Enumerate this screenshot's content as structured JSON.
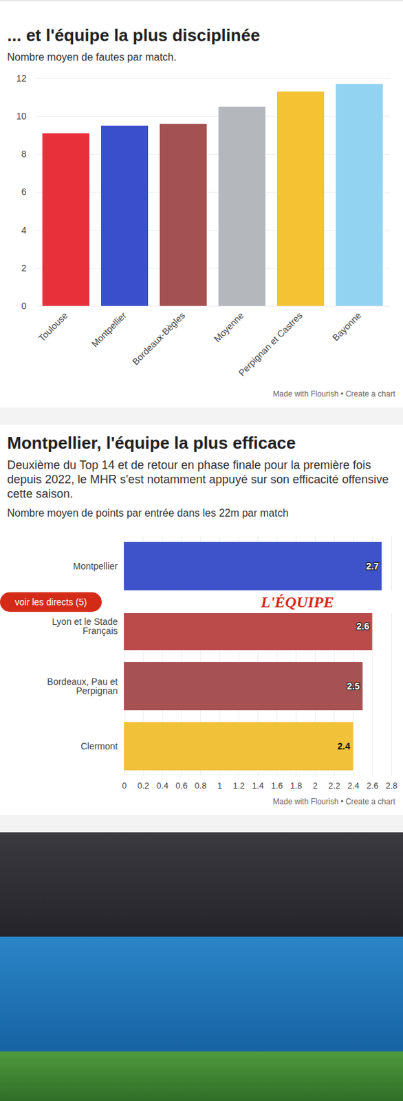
{
  "banner": {
    "button": "voir les directs (5)",
    "logo": "L'ÉQUIPE"
  },
  "chart_data": [
    {
      "type": "bar",
      "title": "... et l'équipe la plus disciplinée",
      "subtitle": "Nombre moyen de fautes par match.",
      "categories": [
        "Toulouse",
        "Montpellier",
        "Bordeaux-Bègles",
        "Moyenne",
        "Perpignan et Castres",
        "Bayonne"
      ],
      "values": [
        9.1,
        9.5,
        9.6,
        10.5,
        11.3,
        11.7
      ],
      "colors": [
        "#e8303a",
        "#3a4fcb",
        "#a35151",
        "#b4b7bc",
        "#f4c233",
        "#92d3f2"
      ],
      "ylim": [
        0,
        12
      ],
      "yticks": [
        0,
        2,
        4,
        6,
        8,
        10,
        12
      ],
      "grid": true,
      "annotations": [
        "Made with Flourish • Create a chart"
      ]
    },
    {
      "type": "bar",
      "orientation": "horizontal",
      "title": "Montpellier, l'équipe la plus efficace",
      "description": "Deuxième du Top 14 et de retour en phase finale pour la première fois depuis 2022, le MHR s'est notamment appuyé sur son efficacité offensive cette saison.",
      "subtitle": "Nombre moyen de points par entrée dans les 22m par match",
      "categories": [
        "Montpellier",
        "Lyon et le Stade Français",
        "Bordeaux, Pau et Perpignan",
        "Clermont"
      ],
      "values": [
        2.7,
        2.6,
        2.5,
        2.4
      ],
      "colors": [
        "#3e53c9",
        "#bb4a4b",
        "#a65252",
        "#f2c13a"
      ],
      "xlim": [
        0,
        2.8
      ],
      "xticks": [
        0,
        0.2,
        0.4,
        0.6,
        0.8,
        1,
        1.2,
        1.4,
        1.6,
        1.8,
        2,
        2.2,
        2.4,
        2.6,
        2.8
      ],
      "grid": true,
      "data_labels": true,
      "annotations": [
        "Made with Flourish • Create a chart"
      ]
    }
  ]
}
